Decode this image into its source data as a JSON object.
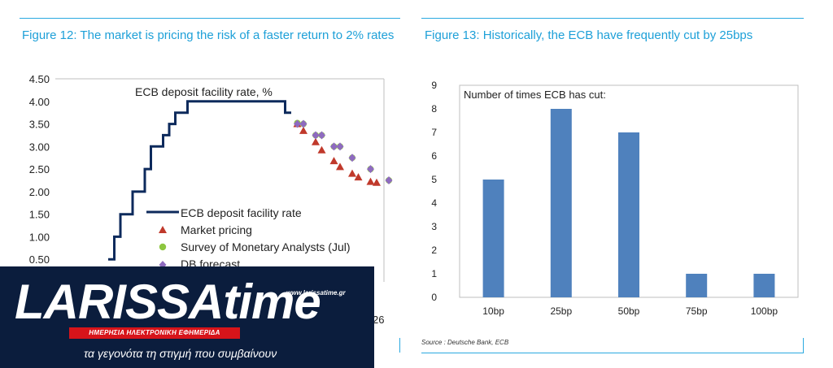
{
  "figure12": {
    "title": "Figure 12: The market is pricing the risk of a faster return to 2% rates",
    "chart_data": {
      "type": "line",
      "title": "ECB deposit facility rate, %",
      "ylim": [
        0,
        4.5
      ],
      "yticks": [
        "4.50",
        "4.00",
        "3.50",
        "3.00",
        "2.50",
        "2.00",
        "1.50",
        "1.00",
        "0.50"
      ],
      "xtick_partial": "26",
      "series": [
        {
          "name": "ECB deposit facility rate",
          "kind": "line",
          "color": "#0d2a5c",
          "x": [
            0,
            1,
            2,
            3,
            4,
            5,
            6,
            7,
            8,
            9,
            10,
            11,
            12,
            13,
            14,
            15,
            16,
            17,
            18,
            19,
            20,
            21,
            22,
            23,
            24,
            25,
            26,
            27,
            28,
            29,
            30
          ],
          "values": [
            0.5,
            1.0,
            1.5,
            1.5,
            2.0,
            2.0,
            2.5,
            3.0,
            3.0,
            3.25,
            3.5,
            3.75,
            3.75,
            4.0,
            4.0,
            4.0,
            4.0,
            4.0,
            4.0,
            4.0,
            4.0,
            4.0,
            4.0,
            4.0,
            4.0,
            4.0,
            4.0,
            4.0,
            4.0,
            3.75,
            3.75
          ]
        },
        {
          "name": "Market pricing",
          "kind": "marker",
          "marker": "triangle",
          "color": "#c0392b",
          "x": [
            35,
            36,
            38,
            39,
            41,
            42,
            44,
            45,
            47,
            48
          ],
          "values": [
            3.5,
            3.35,
            3.1,
            2.92,
            2.68,
            2.55,
            2.4,
            2.32,
            2.22,
            2.2
          ]
        },
        {
          "name": "Survey of Monetary Analysts (Jul)",
          "kind": "marker",
          "marker": "circle",
          "color": "#8dc63f",
          "x": [
            35,
            36,
            38,
            39,
            41,
            42,
            44,
            47,
            50
          ],
          "values": [
            3.52,
            3.5,
            3.25,
            3.25,
            3.0,
            3.0,
            2.75,
            2.5,
            2.25
          ]
        },
        {
          "name": "DB forecast",
          "kind": "marker",
          "marker": "diamond",
          "color": "#8e6bbf",
          "x": [
            35,
            36,
            38,
            39,
            41,
            42,
            44,
            47,
            50
          ],
          "values": [
            3.5,
            3.5,
            3.25,
            3.25,
            3.0,
            3.0,
            2.75,
            2.5,
            2.25
          ]
        }
      ]
    }
  },
  "figure13": {
    "title": "Figure 13: Historically, the ECB have frequently cut by 25bps",
    "source": "Source : Deutsche Bank, ECB",
    "chart_data": {
      "type": "bar",
      "title": "Number of times ECB has cut:",
      "categories": [
        "10bp",
        "25bp",
        "50bp",
        "75bp",
        "100bp"
      ],
      "values": [
        5,
        8,
        7,
        1,
        1
      ],
      "ylim": [
        0,
        9
      ],
      "yticks": [
        "0",
        "1",
        "2",
        "3",
        "4",
        "5",
        "6",
        "7",
        "8",
        "9"
      ],
      "color": "#4f81bd"
    }
  },
  "logo": {
    "name": "LARISSAtime",
    "url": "www.larissatime.gr",
    "badge": "ΗΜΕΡΗΣΙΑ ΗΛΕΚΤΡΟΝΙΚΗ ΕΦΗΜΕΡΙΔΑ",
    "tagline": "τα γεγονότα τη στιγμή που συμβαίνουν"
  }
}
